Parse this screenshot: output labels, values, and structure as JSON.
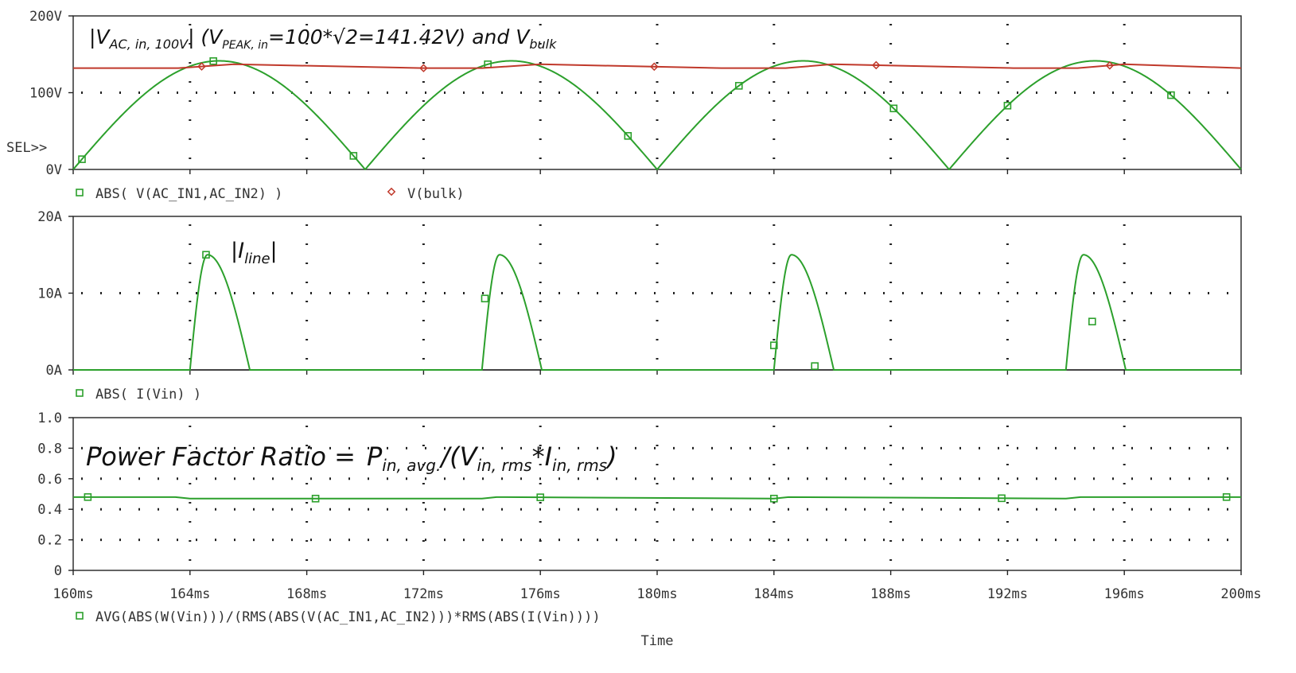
{
  "colors": {
    "green": "#2ca02c",
    "red": "#c0392b",
    "axis": "#222222",
    "grid": "#222222",
    "text": "#333333"
  },
  "shared_x": {
    "label": "Time",
    "tick_values_ms": [
      160,
      164,
      168,
      172,
      176,
      180,
      184,
      188,
      192,
      196,
      200
    ],
    "tick_labels": [
      "160ms",
      "164ms",
      "168ms",
      "172ms",
      "176ms",
      "180ms",
      "184ms",
      "188ms",
      "192ms",
      "196ms",
      "200ms"
    ]
  },
  "chart_data": [
    {
      "type": "line",
      "title": "",
      "annotation": {
        "prefix": "|V",
        "sub1": "AC, in, 100V",
        "mid": "| (V",
        "sub2": "PEAK, in",
        "tail": "=100*√2=141.42V) and V",
        "sub3": "bulk"
      },
      "xlim": [
        160,
        200
      ],
      "ylim": [
        0,
        200
      ],
      "y_ticks": [
        0,
        100,
        200
      ],
      "y_tick_labels": [
        "0V",
        "100V",
        "200V"
      ],
      "sel_label": "SEL>>",
      "grid": true,
      "series": [
        {
          "name": "ABS( V(AC_IN1,AC_IN2) )",
          "marker": "square",
          "color": "#2ca02c",
          "kind": "rectified_sine",
          "peak": 141.42,
          "period_ms": 20,
          "zero_ms": 160,
          "marker_x": [
            160.3,
            164.8,
            169.6,
            174.2,
            179.0,
            182.8,
            188.1,
            192.0,
            197.6
          ]
        },
        {
          "name": "V(bulk)",
          "marker": "diamond",
          "color": "#c0392b",
          "x": [
            160,
            163.6,
            165.5,
            172.0,
            174.0,
            176.0,
            182.2,
            184.4,
            186.0,
            192.2,
            194.4,
            196.0,
            200
          ],
          "y": [
            132,
            132,
            137,
            132,
            132,
            137,
            132,
            132,
            137,
            132,
            132,
            137,
            132
          ],
          "marker_x": [
            164.4,
            172.0,
            179.9,
            187.5,
            195.5
          ]
        }
      ]
    },
    {
      "type": "line",
      "title": "",
      "annotation": {
        "prefix": "|I",
        "sub1": "line",
        "tail": "|"
      },
      "xlim": [
        160,
        200
      ],
      "ylim": [
        0,
        20
      ],
      "y_ticks": [
        0,
        10,
        20
      ],
      "y_tick_labels": [
        "0A",
        "10A",
        "20A"
      ],
      "grid": true,
      "series": [
        {
          "name": "ABS( I(Vin) )",
          "marker": "square",
          "color": "#2ca02c",
          "kind": "pulses",
          "pulse_starts_ms": [
            164.0,
            174.0,
            184.0,
            194.0
          ],
          "rise_ms": 0.6,
          "fall_ms": 1.45,
          "peak": 15,
          "marker_points": [
            [
              164.55,
              15
            ],
            [
              174.1,
              9.3
            ],
            [
              184.0,
              3.2
            ],
            [
              185.4,
              0.5
            ],
            [
              194.9,
              6.3
            ]
          ]
        }
      ]
    },
    {
      "type": "line",
      "title": "",
      "annotation": {
        "main": "Power Factor Ratio =",
        "p": "P",
        "psub": "in, avg.",
        "rest1": "/(V",
        "vsub": "in, rms",
        "star": "*",
        "i": "I",
        "isub": "in, rms",
        "close": ")"
      },
      "xlim": [
        160,
        200
      ],
      "ylim": [
        0,
        1.0
      ],
      "y_ticks": [
        0,
        0.2,
        0.4,
        0.6,
        0.8,
        1.0
      ],
      "y_tick_labels": [
        "0",
        "0.2",
        "0.4",
        "0.6",
        "0.8",
        "1.0"
      ],
      "grid": true,
      "series": [
        {
          "name": "AVG(ABS(W(Vin)))/(RMS(ABS(V(AC_IN1,AC_IN2)))*RMS(ABS(I(Vin))))",
          "marker": "square",
          "color": "#2ca02c",
          "x": [
            160,
            163.5,
            164.0,
            174.0,
            174.5,
            184.0,
            184.5,
            194.0,
            194.5,
            200
          ],
          "y": [
            0.48,
            0.48,
            0.47,
            0.47,
            0.48,
            0.47,
            0.48,
            0.47,
            0.48,
            0.48
          ],
          "marker_x": [
            160.5,
            168.3,
            176.0,
            184.0,
            191.8,
            199.5
          ]
        }
      ]
    }
  ]
}
